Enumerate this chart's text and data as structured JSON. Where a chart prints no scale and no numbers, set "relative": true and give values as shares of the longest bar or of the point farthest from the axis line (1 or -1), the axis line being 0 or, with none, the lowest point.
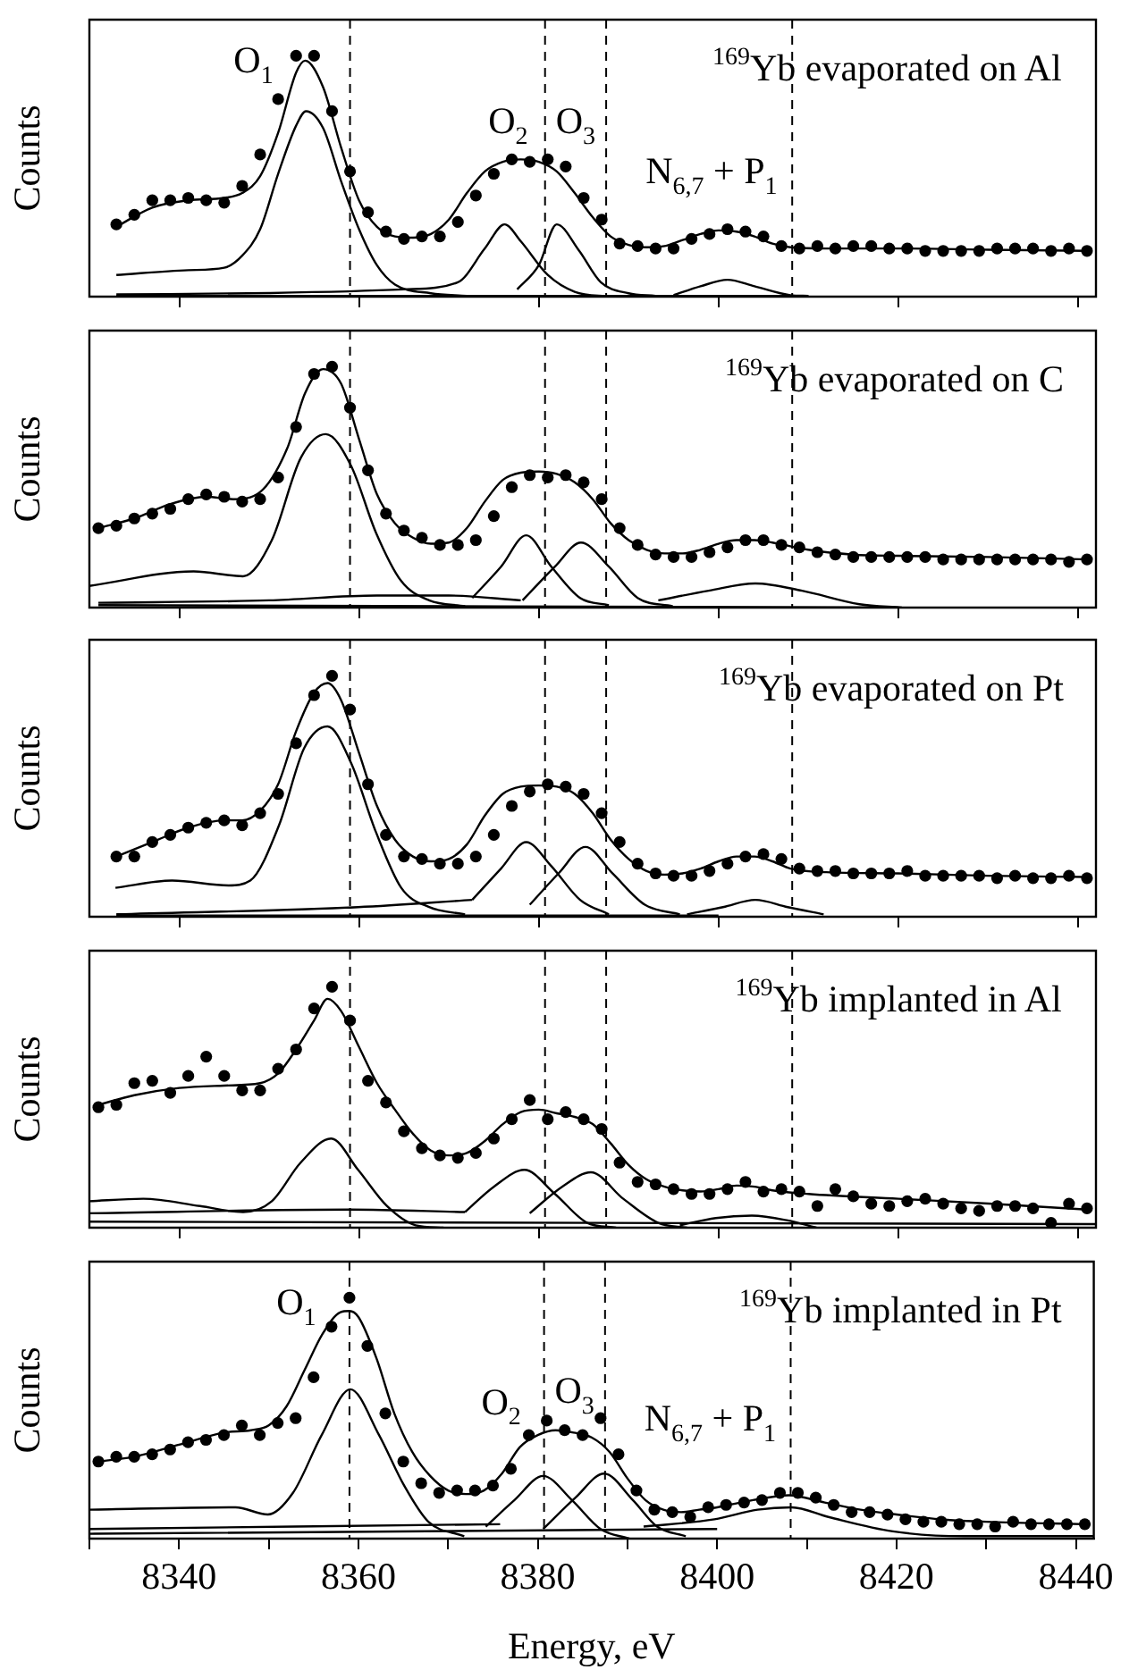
{
  "chart_data": [
    {
      "type": "scatter",
      "title": "$^{169}$Yb evaporated on Al",
      "ylabel": "Counts",
      "relative": true,
      "xlim": [
        8330,
        8442
      ],
      "xticks": [
        8340,
        8360,
        8380,
        8400,
        8420,
        8440
      ],
      "tick_labels": false,
      "x": [
        8333,
        8335,
        8337,
        8339,
        8341,
        8343,
        8345,
        8347,
        8349,
        8351,
        8353,
        8355,
        8357,
        8359,
        8361,
        8363,
        8365,
        8367,
        8369,
        8371,
        8373,
        8375,
        8377,
        8379,
        8381,
        8383,
        8385,
        8387,
        8389,
        8391,
        8393,
        8395,
        8397,
        8399,
        8401,
        8403,
        8405,
        8407,
        8409,
        8411,
        8413,
        8415,
        8417,
        8419,
        8421,
        8423,
        8425,
        8427,
        8429,
        8431,
        8433,
        8435,
        8437,
        8439,
        8441
      ],
      "series": [
        {
          "type": "scatter",
          "color": "#000000",
          "marker": "circle",
          "values": [
            0.3,
            0.34,
            0.4,
            0.4,
            0.41,
            0.4,
            0.39,
            0.46,
            0.59,
            0.82,
            1.0,
            1.0,
            0.77,
            0.52,
            0.35,
            0.27,
            0.24,
            0.25,
            0.25,
            0.31,
            0.42,
            0.51,
            0.57,
            0.56,
            0.57,
            0.54,
            0.41,
            0.32,
            0.22,
            0.21,
            0.2,
            0.2,
            0.24,
            0.26,
            0.28,
            0.27,
            0.25,
            0.21,
            0.2,
            0.21,
            0.2,
            0.21,
            0.21,
            0.2,
            0.2,
            0.19,
            0.19,
            0.19,
            0.19,
            0.2,
            0.2,
            0.2,
            0.19,
            0.2,
            0.19
          ]
        },
        {
          "type": "line",
          "color": "#000000",
          "x": [
            8333,
            8337,
            8341,
            8345,
            8347,
            8349,
            8351,
            8353,
            8354,
            8356,
            8358,
            8360,
            8362,
            8364,
            8366,
            8368,
            8370,
            8372,
            8374,
            8376,
            8378,
            8380,
            8382,
            8384,
            8386,
            8388,
            8390,
            8392,
            8394,
            8396,
            8398,
            8400,
            8402,
            8404,
            8406,
            8408,
            8412,
            8420,
            8430,
            8441
          ],
          "values": [
            0.29,
            0.37,
            0.4,
            0.41,
            0.43,
            0.5,
            0.68,
            0.93,
            0.98,
            0.87,
            0.62,
            0.4,
            0.29,
            0.25,
            0.245,
            0.26,
            0.32,
            0.43,
            0.52,
            0.56,
            0.57,
            0.56,
            0.52,
            0.43,
            0.33,
            0.25,
            0.215,
            0.205,
            0.21,
            0.235,
            0.26,
            0.275,
            0.27,
            0.25,
            0.22,
            0.205,
            0.2,
            0.2,
            0.195,
            0.19
          ]
        },
        {
          "type": "line",
          "color": "#000000",
          "x": [
            8333,
            8341,
            8345,
            8347,
            8349,
            8351,
            8353,
            8354.1,
            8356,
            8358,
            8360,
            8362,
            8364,
            8368,
            8372
          ],
          "values": [
            0.09,
            0.11,
            0.12,
            0.17,
            0.28,
            0.51,
            0.71,
            0.77,
            0.7,
            0.48,
            0.28,
            0.13,
            0.05,
            0.014,
            0.003
          ]
        },
        {
          "type": "line",
          "color": "#000000",
          "x": [
            8333,
            8350,
            8365,
            8371,
            8374,
            8376.2,
            8378,
            8381,
            8384,
            8388
          ],
          "values": [
            0.009,
            0.015,
            0.03,
            0.06,
            0.2,
            0.3,
            0.23,
            0.09,
            0.02,
            0.0
          ]
        },
        {
          "type": "line",
          "color": "#000000",
          "x": [
            8377.6,
            8380,
            8382,
            8384.5,
            8386.9,
            8390,
            8393
          ],
          "values": [
            0.03,
            0.13,
            0.3,
            0.19,
            0.06,
            0.014,
            0.003
          ]
        },
        {
          "type": "line",
          "color": "#000000",
          "x": [
            8395,
            8398,
            8401,
            8404,
            8408,
            8410
          ],
          "values": [
            0.006,
            0.043,
            0.07,
            0.043,
            0.006,
            0.003
          ]
        },
        {
          "type": "line",
          "color": "#000000",
          "x": [
            8333,
            8410
          ],
          "values": [
            0.003,
            0.003
          ]
        }
      ],
      "ref_lines": [
        {
          "axis": "x",
          "value": 8359,
          "line_style": "dashed"
        },
        {
          "axis": "x",
          "value": 8380.7,
          "line_style": "dashed"
        },
        {
          "axis": "x",
          "value": 8387.5,
          "line_style": "dashed"
        },
        {
          "axis": "x",
          "value": 8408.2,
          "line_style": "dashed"
        }
      ],
      "annotations": [
        "O$_{1}$",
        "O$_{2}$",
        "O$_{3}$",
        "N$_{6,7}$ + P$_{1}$"
      ]
    },
    {
      "type": "scatter",
      "title": "$^{169}$Yb evaporated on C",
      "ylabel": "Counts",
      "relative": true,
      "xlim": [
        8330,
        8442
      ],
      "xticks": [
        8340,
        8360,
        8380,
        8400,
        8420,
        8440
      ],
      "tick_labels": false,
      "x": [
        8331,
        8333,
        8335,
        8337,
        8339,
        8341,
        8343,
        8345,
        8347,
        8349,
        8351,
        8353,
        8355,
        8357,
        8359,
        8361,
        8363,
        8365,
        8367,
        8369,
        8371,
        8373,
        8375,
        8377,
        8379,
        8381,
        8383,
        8385,
        8387,
        8389,
        8391,
        8393,
        8395,
        8397,
        8399,
        8401,
        8403,
        8405,
        8407,
        8409,
        8411,
        8413,
        8415,
        8417,
        8419,
        8421,
        8423,
        8425,
        8427,
        8429,
        8431,
        8433,
        8435,
        8437,
        8439,
        8441
      ],
      "series": [
        {
          "type": "scatter",
          "color": "#000000",
          "marker": "circle",
          "values": [
            0.33,
            0.34,
            0.37,
            0.39,
            0.41,
            0.45,
            0.47,
            0.46,
            0.44,
            0.45,
            0.54,
            0.75,
            0.97,
            1.0,
            0.83,
            0.57,
            0.39,
            0.32,
            0.29,
            0.26,
            0.26,
            0.28,
            0.38,
            0.5,
            0.55,
            0.54,
            0.55,
            0.52,
            0.45,
            0.33,
            0.26,
            0.22,
            0.21,
            0.21,
            0.23,
            0.25,
            0.28,
            0.28,
            0.26,
            0.25,
            0.23,
            0.22,
            0.21,
            0.21,
            0.21,
            0.21,
            0.21,
            0.2,
            0.2,
            0.2,
            0.2,
            0.2,
            0.2,
            0.2,
            0.19,
            0.2
          ]
        },
        {
          "type": "line",
          "color": "#000000",
          "x": [
            8331,
            8335,
            8339,
            8343,
            8346,
            8349,
            8352,
            8354,
            8356,
            8358,
            8360,
            8362,
            8364,
            8366,
            8368,
            8370,
            8372,
            8374,
            8376,
            8378,
            8380,
            8382,
            8384,
            8386,
            8388,
            8390,
            8392,
            8394,
            8396,
            8398,
            8400,
            8402,
            8404,
            8406,
            8410,
            8415,
            8420,
            8430,
            8441
          ],
          "values": [
            0.33,
            0.37,
            0.43,
            0.46,
            0.45,
            0.48,
            0.66,
            0.89,
            0.99,
            0.93,
            0.7,
            0.47,
            0.35,
            0.29,
            0.265,
            0.27,
            0.33,
            0.44,
            0.53,
            0.56,
            0.565,
            0.555,
            0.52,
            0.45,
            0.35,
            0.28,
            0.24,
            0.225,
            0.225,
            0.24,
            0.265,
            0.28,
            0.28,
            0.27,
            0.24,
            0.22,
            0.215,
            0.21,
            0.2
          ]
        },
        {
          "type": "line",
          "color": "#000000",
          "x": [
            8330,
            8341.6,
            8347.1,
            8350.3,
            8353.5,
            8356.3,
            8359.1,
            8361.9,
            8364.7,
            8367.8,
            8371.8
          ],
          "values": [
            0.09,
            0.15,
            0.13,
            0.28,
            0.62,
            0.72,
            0.59,
            0.31,
            0.11,
            0.03,
            0.006
          ]
        },
        {
          "type": "line",
          "color": "#000000",
          "x": [
            8372.6,
            8375.8,
            8378.6,
            8381.4,
            8384.6,
            8387.8
          ],
          "values": [
            0.04,
            0.17,
            0.3,
            0.17,
            0.04,
            0.01
          ]
        },
        {
          "type": "line",
          "color": "#000000",
          "x": [
            8378.2,
            8381.8,
            8384.7,
            8387.8,
            8391,
            8394.9
          ],
          "values": [
            0.03,
            0.17,
            0.27,
            0.17,
            0.04,
            0.006
          ]
        },
        {
          "type": "line",
          "color": "#000000",
          "x": [
            8393.3,
            8398.9,
            8404.1,
            8409.3,
            8415.7,
            8420.4
          ],
          "values": [
            0.03,
            0.07,
            0.1,
            0.07,
            0.014,
            0.0
          ]
        },
        {
          "type": "line",
          "color": "#000000",
          "x": [
            8331,
            8350,
            8362,
            8370,
            8378
          ],
          "values": [
            0.02,
            0.03,
            0.05,
            0.05,
            0.03
          ]
        },
        {
          "type": "line",
          "color": "#000000",
          "x": [
            8331,
            8420
          ],
          "values": [
            0.01,
            0.0
          ]
        }
      ],
      "ref_lines": [
        {
          "axis": "x",
          "value": 8359,
          "line_style": "dashed"
        },
        {
          "axis": "x",
          "value": 8380.7,
          "line_style": "dashed"
        },
        {
          "axis": "x",
          "value": 8387.5,
          "line_style": "dashed"
        },
        {
          "axis": "x",
          "value": 8408.2,
          "line_style": "dashed"
        }
      ]
    },
    {
      "type": "scatter",
      "title": "$^{169}$Yb evaporated on Pt",
      "ylabel": "Counts",
      "relative": true,
      "xlim": [
        8330,
        8442
      ],
      "xticks": [
        8340,
        8360,
        8380,
        8400,
        8420,
        8440
      ],
      "tick_labels": false,
      "x": [
        8333,
        8335,
        8337,
        8339,
        8341,
        8343,
        8345,
        8347,
        8349,
        8351,
        8353,
        8355,
        8357,
        8359,
        8361,
        8363,
        8365,
        8367,
        8369,
        8371,
        8373,
        8375,
        8377,
        8379,
        8381,
        8383,
        8385,
        8387,
        8389,
        8391,
        8393,
        8395,
        8397,
        8399,
        8401,
        8403,
        8405,
        8407,
        8409,
        8411,
        8413,
        8415,
        8417,
        8419,
        8421,
        8423,
        8425,
        8427,
        8429,
        8431,
        8433,
        8435,
        8437,
        8439,
        8441
      ],
      "series": [
        {
          "type": "scatter",
          "color": "#000000",
          "marker": "circle",
          "values": [
            0.25,
            0.25,
            0.31,
            0.34,
            0.37,
            0.39,
            0.4,
            0.38,
            0.43,
            0.51,
            0.72,
            0.92,
            1.0,
            0.86,
            0.55,
            0.34,
            0.25,
            0.24,
            0.22,
            0.22,
            0.25,
            0.34,
            0.46,
            0.52,
            0.55,
            0.54,
            0.51,
            0.43,
            0.31,
            0.22,
            0.18,
            0.17,
            0.17,
            0.19,
            0.22,
            0.25,
            0.26,
            0.24,
            0.2,
            0.19,
            0.19,
            0.18,
            0.18,
            0.18,
            0.19,
            0.17,
            0.17,
            0.17,
            0.17,
            0.16,
            0.17,
            0.16,
            0.16,
            0.17,
            0.16
          ]
        },
        {
          "type": "line",
          "color": "#000000",
          "x": [
            8333,
            8337,
            8341,
            8345,
            8347,
            8349,
            8351,
            8353,
            8355,
            8356.5,
            8358,
            8360,
            8362,
            8364,
            8366,
            8368,
            8370,
            8372,
            8374,
            8376,
            8378,
            8380,
            8382,
            8384,
            8386,
            8388,
            8390,
            8392,
            8394,
            8396,
            8398,
            8400,
            8402,
            8404,
            8406,
            8408,
            8412,
            8420,
            8430,
            8441
          ],
          "values": [
            0.25,
            0.31,
            0.37,
            0.4,
            0.4,
            0.44,
            0.55,
            0.77,
            0.93,
            0.97,
            0.9,
            0.68,
            0.46,
            0.32,
            0.25,
            0.23,
            0.24,
            0.3,
            0.42,
            0.51,
            0.54,
            0.545,
            0.54,
            0.51,
            0.43,
            0.32,
            0.24,
            0.19,
            0.175,
            0.18,
            0.2,
            0.23,
            0.25,
            0.25,
            0.23,
            0.2,
            0.185,
            0.18,
            0.17,
            0.165
          ]
        },
        {
          "type": "line",
          "color": "#000000",
          "x": [
            8332.9,
            8339.2,
            8345.5,
            8347.9,
            8351.1,
            8353.9,
            8356.5,
            8359.1,
            8361.9,
            8364.7,
            8367.8,
            8371.8
          ],
          "values": [
            0.12,
            0.15,
            0.13,
            0.15,
            0.38,
            0.7,
            0.79,
            0.64,
            0.35,
            0.12,
            0.04,
            0.01
          ]
        },
        {
          "type": "line",
          "color": "#000000",
          "x": [
            8372.6,
            8375.8,
            8378.6,
            8381.4,
            8384.6,
            8387.8
          ],
          "values": [
            0.07,
            0.2,
            0.31,
            0.21,
            0.07,
            0.01
          ]
        },
        {
          "type": "line",
          "color": "#000000",
          "x": [
            8379,
            8382.2,
            8385.2,
            8388.2,
            8391.8,
            8395.7
          ],
          "values": [
            0.05,
            0.18,
            0.29,
            0.18,
            0.05,
            0.01
          ]
        },
        {
          "type": "line",
          "color": "#000000",
          "x": [
            8396.5,
            8400.5,
            8404.1,
            8407.7,
            8411.7
          ],
          "values": [
            0.01,
            0.04,
            0.07,
            0.04,
            0.01
          ]
        },
        {
          "type": "line",
          "color": "#000000",
          "x": [
            8333,
            8359.9,
            8372.6
          ],
          "values": [
            0.01,
            0.04,
            0.07
          ]
        },
        {
          "type": "line",
          "color": "#000000",
          "x": [
            8333,
            8400
          ],
          "values": [
            0.005,
            0.005
          ]
        }
      ],
      "ref_lines": [
        {
          "axis": "x",
          "value": 8359,
          "line_style": "dashed"
        },
        {
          "axis": "x",
          "value": 8380.7,
          "line_style": "dashed"
        },
        {
          "axis": "x",
          "value": 8387.5,
          "line_style": "dashed"
        },
        {
          "axis": "x",
          "value": 8408.2,
          "line_style": "dashed"
        }
      ]
    },
    {
      "type": "scatter",
      "title": "$^{169}$Yb implanted in Al",
      "ylabel": "Counts",
      "relative": true,
      "xlim": [
        8330,
        8442
      ],
      "xticks": [
        8340,
        8360,
        8380,
        8400,
        8420,
        8440
      ],
      "tick_labels": false,
      "x": [
        8331,
        8333,
        8335,
        8337,
        8339,
        8341,
        8343,
        8345,
        8347,
        8349,
        8351,
        8353,
        8355,
        8357,
        8359,
        8361,
        8363,
        8365,
        8367,
        8369,
        8371,
        8373,
        8375,
        8377,
        8379,
        8381,
        8383,
        8385,
        8387,
        8389,
        8391,
        8393,
        8395,
        8397,
        8399,
        8401,
        8403,
        8405,
        8407,
        8409,
        8411,
        8413,
        8415,
        8417,
        8419,
        8421,
        8423,
        8425,
        8427,
        8429,
        8431,
        8433,
        8435,
        8437,
        8439,
        8441
      ],
      "series": [
        {
          "type": "scatter",
          "color": "#000000",
          "marker": "circle",
          "values": [
            0.5,
            0.51,
            0.6,
            0.61,
            0.56,
            0.63,
            0.71,
            0.63,
            0.57,
            0.57,
            0.66,
            0.74,
            0.91,
            1.0,
            0.86,
            0.61,
            0.52,
            0.4,
            0.33,
            0.3,
            0.29,
            0.31,
            0.37,
            0.45,
            0.53,
            0.45,
            0.48,
            0.45,
            0.41,
            0.27,
            0.19,
            0.18,
            0.16,
            0.14,
            0.14,
            0.16,
            0.19,
            0.15,
            0.16,
            0.15,
            0.09,
            0.16,
            0.13,
            0.1,
            0.09,
            0.11,
            0.12,
            0.1,
            0.08,
            0.07,
            0.09,
            0.09,
            0.08,
            0.02,
            0.1,
            0.08
          ]
        },
        {
          "type": "line",
          "color": "#000000",
          "x": [
            8331,
            8335,
            8340,
            8345,
            8349,
            8351,
            8353,
            8355,
            8356.5,
            8358,
            8360,
            8362,
            8364,
            8366,
            8368,
            8370,
            8372,
            8374,
            8376,
            8378,
            8380,
            8382,
            8384,
            8386,
            8388,
            8390,
            8392,
            8394,
            8396,
            8398,
            8400,
            8402,
            8404,
            8406,
            8410,
            8420,
            8430,
            8441
          ],
          "values": [
            0.51,
            0.55,
            0.58,
            0.59,
            0.6,
            0.64,
            0.74,
            0.86,
            0.95,
            0.9,
            0.75,
            0.6,
            0.49,
            0.39,
            0.32,
            0.3,
            0.31,
            0.36,
            0.43,
            0.48,
            0.49,
            0.475,
            0.46,
            0.43,
            0.35,
            0.26,
            0.2,
            0.17,
            0.155,
            0.15,
            0.16,
            0.175,
            0.17,
            0.155,
            0.14,
            0.12,
            0.1,
            0.075
          ]
        },
        {
          "type": "line",
          "color": "#000000",
          "x": [
            8330,
            8336,
            8342.3,
            8347.1,
            8350.3,
            8353.5,
            8356.9,
            8359.9,
            8363.1,
            8366.3,
            8369.4
          ],
          "values": [
            0.11,
            0.12,
            0.09,
            0.065,
            0.11,
            0.27,
            0.37,
            0.24,
            0.09,
            0.01,
            0.0
          ]
        },
        {
          "type": "line",
          "color": "#000000",
          "x": [
            8371.8,
            8375,
            8378.4,
            8381.8,
            8385.4,
            8388.6
          ],
          "values": [
            0.065,
            0.17,
            0.24,
            0.14,
            0.02,
            0.0
          ]
        },
        {
          "type": "line",
          "color": "#000000",
          "x": [
            8379,
            8382.6,
            8385.8,
            8389.4,
            8393.3,
            8396.5
          ],
          "values": [
            0.06,
            0.17,
            0.23,
            0.12,
            0.02,
            0.0
          ]
        },
        {
          "type": "line",
          "color": "#000000",
          "x": [
            8395.7,
            8399.7,
            8403.7,
            8407.7,
            8410.9
          ],
          "values": [
            0.01,
            0.04,
            0.05,
            0.03,
            0.0
          ]
        },
        {
          "type": "line",
          "color": "#000000",
          "x": [
            8330,
            8359,
            8371.8
          ],
          "values": [
            0.06,
            0.075,
            0.065
          ]
        },
        {
          "type": "line",
          "color": "#000000",
          "x": [
            8330,
            8442
          ],
          "values": [
            0.025,
            0.015
          ]
        }
      ],
      "ref_lines": [
        {
          "axis": "x",
          "value": 8359,
          "line_style": "dashed"
        },
        {
          "axis": "x",
          "value": 8380.7,
          "line_style": "dashed"
        },
        {
          "axis": "x",
          "value": 8387.5,
          "line_style": "dashed"
        },
        {
          "axis": "x",
          "value": 8408.2,
          "line_style": "dashed"
        }
      ]
    },
    {
      "type": "scatter",
      "title": "$^{169}$Yb implanted in Pt",
      "ylabel": "Counts",
      "xlabel": "Energy, eV",
      "relative": true,
      "xlim": [
        8330,
        8442
      ],
      "xticks": [
        {
          "value": 8330,
          "label": null
        },
        8340,
        {
          "value": 8350,
          "label": null
        },
        8360,
        {
          "value": 8370,
          "label": null
        },
        8380,
        {
          "value": 8390,
          "label": null
        },
        8400,
        {
          "value": 8410,
          "label": null
        },
        8420,
        {
          "value": 8430,
          "label": null
        },
        8440
      ],
      "tick_labels": "x",
      "x": [
        8331,
        8333,
        8335,
        8337,
        8339,
        8341,
        8343,
        8345,
        8347,
        8349,
        8351,
        8353,
        8355,
        8357,
        8359,
        8361,
        8363,
        8365,
        8367,
        8369,
        8371,
        8373,
        8375,
        8377,
        8379,
        8381,
        8383,
        8385,
        8387,
        8389,
        8391,
        8393,
        8395,
        8397,
        8399,
        8401,
        8403,
        8405,
        8407,
        8409,
        8411,
        8413,
        8415,
        8417,
        8419,
        8421,
        8423,
        8425,
        8427,
        8429,
        8431,
        8433,
        8435,
        8437,
        8439,
        8441
      ],
      "series": [
        {
          "type": "scatter",
          "color": "#000000",
          "marker": "circle",
          "values": [
            0.32,
            0.34,
            0.34,
            0.35,
            0.37,
            0.4,
            0.41,
            0.43,
            0.47,
            0.43,
            0.48,
            0.5,
            0.67,
            0.88,
            1.0,
            0.8,
            0.52,
            0.32,
            0.23,
            0.19,
            0.2,
            0.2,
            0.22,
            0.29,
            0.43,
            0.49,
            0.45,
            0.43,
            0.5,
            0.35,
            0.2,
            0.12,
            0.11,
            0.09,
            0.13,
            0.14,
            0.15,
            0.16,
            0.19,
            0.19,
            0.17,
            0.14,
            0.11,
            0.11,
            0.1,
            0.08,
            0.07,
            0.07,
            0.06,
            0.06,
            0.05,
            0.07,
            0.06,
            0.06,
            0.06,
            0.06
          ]
        },
        {
          "type": "line",
          "color": "#000000",
          "x": [
            8331,
            8335,
            8340,
            8345,
            8348,
            8350,
            8352,
            8354,
            8356,
            8358,
            8359,
            8360,
            8362,
            8364,
            8366,
            8368,
            8370,
            8372,
            8374,
            8376,
            8378,
            8380,
            8382,
            8384,
            8386,
            8388,
            8390,
            8392,
            8394,
            8396,
            8398,
            8400,
            8404,
            8408,
            8412,
            8416,
            8420,
            8425,
            8430,
            8441
          ],
          "values": [
            0.32,
            0.34,
            0.39,
            0.44,
            0.45,
            0.47,
            0.55,
            0.7,
            0.85,
            0.94,
            0.945,
            0.92,
            0.75,
            0.52,
            0.36,
            0.26,
            0.2,
            0.185,
            0.2,
            0.27,
            0.38,
            0.43,
            0.45,
            0.44,
            0.42,
            0.36,
            0.25,
            0.16,
            0.12,
            0.11,
            0.12,
            0.13,
            0.16,
            0.18,
            0.15,
            0.12,
            0.1,
            0.08,
            0.07,
            0.06
          ]
        },
        {
          "type": "line",
          "color": "#000000",
          "x": [
            8330,
            8346.3,
            8349.9,
            8352.7,
            8355.9,
            8359.1,
            8362.3,
            8365.1,
            8367.8,
            8371.8
          ],
          "values": [
            0.12,
            0.13,
            0.1,
            0.19,
            0.43,
            0.62,
            0.43,
            0.22,
            0.07,
            0.01
          ]
        },
        {
          "type": "line",
          "color": "#000000",
          "x": [
            8374.2,
            8377.4,
            8380.6,
            8383.8,
            8387,
            8390.2
          ],
          "values": [
            0.05,
            0.16,
            0.26,
            0.16,
            0.04,
            0.0
          ]
        },
        {
          "type": "line",
          "color": "#000000",
          "x": [
            8380.6,
            8384.2,
            8387.4,
            8390.6,
            8393.3,
            8396.5
          ],
          "values": [
            0.04,
            0.17,
            0.27,
            0.16,
            0.05,
            0.01
          ]
        },
        {
          "type": "line",
          "color": "#000000",
          "x": [
            8391.8,
            8399.7,
            8404.5,
            8408.3,
            8412.4,
            8419.6,
            8427.6,
            8442
          ],
          "values": [
            0.05,
            0.08,
            0.12,
            0.13,
            0.09,
            0.03,
            0.01,
            0.01
          ]
        },
        {
          "type": "line",
          "color": "#000000",
          "x": [
            8330,
            8375.8
          ],
          "values": [
            0.04,
            0.06
          ]
        },
        {
          "type": "line",
          "color": "#000000",
          "x": [
            8330,
            8400
          ],
          "values": [
            0.02,
            0.04
          ]
        }
      ],
      "ref_lines": [
        {
          "axis": "x",
          "value": 8359,
          "line_style": "dashed"
        },
        {
          "axis": "x",
          "value": 8380.7,
          "line_style": "dashed"
        },
        {
          "axis": "x",
          "value": 8387.5,
          "line_style": "dashed"
        },
        {
          "axis": "x",
          "value": 8408.2,
          "line_style": "dashed"
        }
      ],
      "annotations": [
        "O$_{1}$",
        "O$_{2}$",
        "O$_{3}$",
        "N$_{6,7}$ + P$_{1}$"
      ]
    }
  ]
}
